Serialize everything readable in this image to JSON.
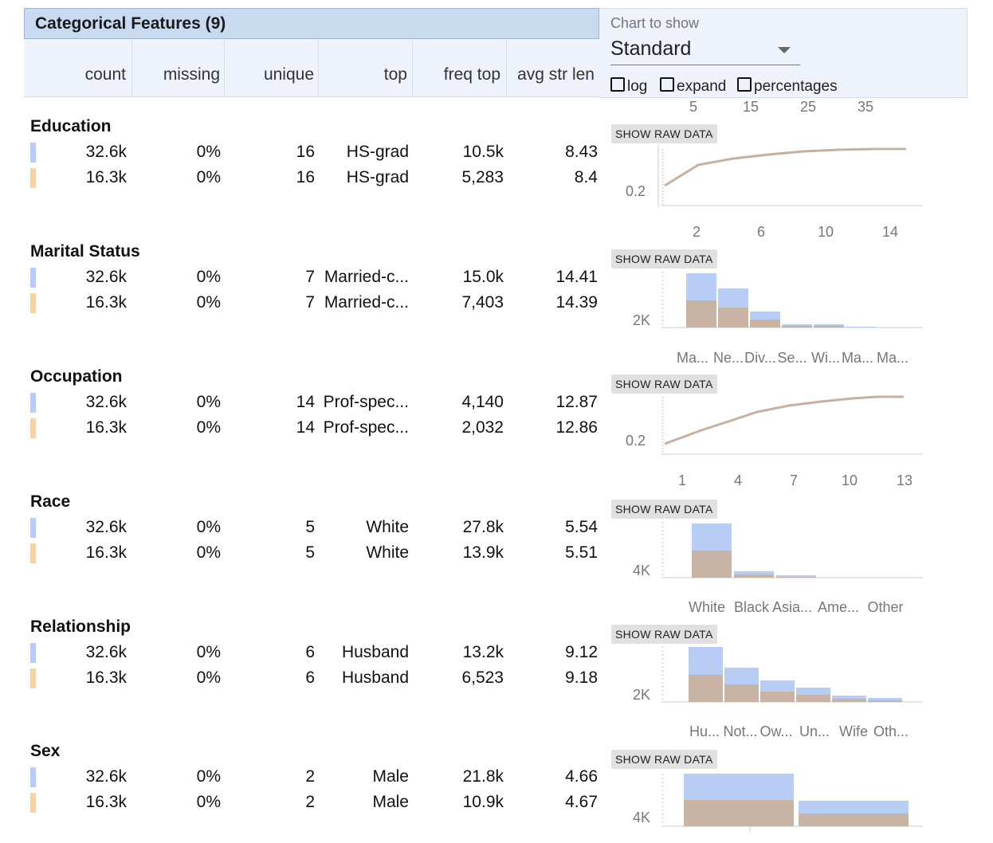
{
  "header": {
    "title": "Categorical Features (9)",
    "columns": [
      "count",
      "missing",
      "unique",
      "top",
      "freq top",
      "avg str len"
    ]
  },
  "controls": {
    "chart_to_show_label": "Chart to show",
    "chart_to_show_value": "Standard",
    "log_label": "log",
    "expand_label": "expand",
    "percentages_label": "percentages"
  },
  "top_axis_ticks": [
    "5",
    "15",
    "25",
    "35"
  ],
  "raw_data_button_label": "SHOW RAW DATA",
  "colors": {
    "series_a": "#b8cdf5",
    "series_b": "#f5d3a8",
    "overlap": "#c9b3a4",
    "line": "#c8b0a0"
  },
  "features": [
    {
      "name": "Education",
      "rows": [
        {
          "count": "32.6k",
          "missing": "0%",
          "unique": "16",
          "top": "HS-grad",
          "freq_top": "10.5k",
          "avg_str_len": "8.43"
        },
        {
          "count": "16.3k",
          "missing": "0%",
          "unique": "16",
          "top": "HS-grad",
          "freq_top": "5,283",
          "avg_str_len": "8.4"
        }
      ],
      "chart": {
        "type": "line",
        "y_label": "0.2",
        "x_ticks": [
          "2",
          "6",
          "10",
          "14"
        ]
      }
    },
    {
      "name": "Marital Status",
      "rows": [
        {
          "count": "32.6k",
          "missing": "0%",
          "unique": "7",
          "top": "Married-c...",
          "freq_top": "15.0k",
          "avg_str_len": "14.41"
        },
        {
          "count": "16.3k",
          "missing": "0%",
          "unique": "7",
          "top": "Married-c...",
          "freq_top": "7,403",
          "avg_str_len": "14.39"
        }
      ],
      "chart": {
        "type": "bar",
        "y_label": "2K",
        "x_ticks": [
          "Ma...",
          "Ne...",
          "Div...",
          "Se...",
          "Wi...",
          "Ma...",
          "Ma..."
        ]
      }
    },
    {
      "name": "Occupation",
      "rows": [
        {
          "count": "32.6k",
          "missing": "0%",
          "unique": "14",
          "top": "Prof-spec...",
          "freq_top": "4,140",
          "avg_str_len": "12.87"
        },
        {
          "count": "16.3k",
          "missing": "0%",
          "unique": "14",
          "top": "Prof-spec...",
          "freq_top": "2,032",
          "avg_str_len": "12.86"
        }
      ],
      "chart": {
        "type": "line",
        "y_label": "0.2",
        "x_ticks": [
          "1",
          "4",
          "7",
          "10",
          "13"
        ]
      }
    },
    {
      "name": "Race",
      "rows": [
        {
          "count": "32.6k",
          "missing": "0%",
          "unique": "5",
          "top": "White",
          "freq_top": "27.8k",
          "avg_str_len": "5.54"
        },
        {
          "count": "16.3k",
          "missing": "0%",
          "unique": "5",
          "top": "White",
          "freq_top": "13.9k",
          "avg_str_len": "5.51"
        }
      ],
      "chart": {
        "type": "bar",
        "y_label": "4K",
        "x_ticks": [
          "White",
          "Black",
          "Asia...",
          "Ame...",
          "Other"
        ]
      }
    },
    {
      "name": "Relationship",
      "rows": [
        {
          "count": "32.6k",
          "missing": "0%",
          "unique": "6",
          "top": "Husband",
          "freq_top": "13.2k",
          "avg_str_len": "9.12"
        },
        {
          "count": "16.3k",
          "missing": "0%",
          "unique": "6",
          "top": "Husband",
          "freq_top": "6,523",
          "avg_str_len": "9.18"
        }
      ],
      "chart": {
        "type": "bar",
        "y_label": "2K",
        "x_ticks": [
          "Hu...",
          "Not...",
          "Ow...",
          "Un...",
          "Wife",
          "Oth..."
        ]
      }
    },
    {
      "name": "Sex",
      "rows": [
        {
          "count": "32.6k",
          "missing": "0%",
          "unique": "2",
          "top": "Male",
          "freq_top": "21.8k",
          "avg_str_len": "4.66"
        },
        {
          "count": "16.3k",
          "missing": "0%",
          "unique": "2",
          "top": "Male",
          "freq_top": "10.9k",
          "avg_str_len": "4.67"
        }
      ],
      "chart": {
        "type": "bar",
        "y_label": "4K",
        "x_ticks": []
      }
    }
  ]
}
